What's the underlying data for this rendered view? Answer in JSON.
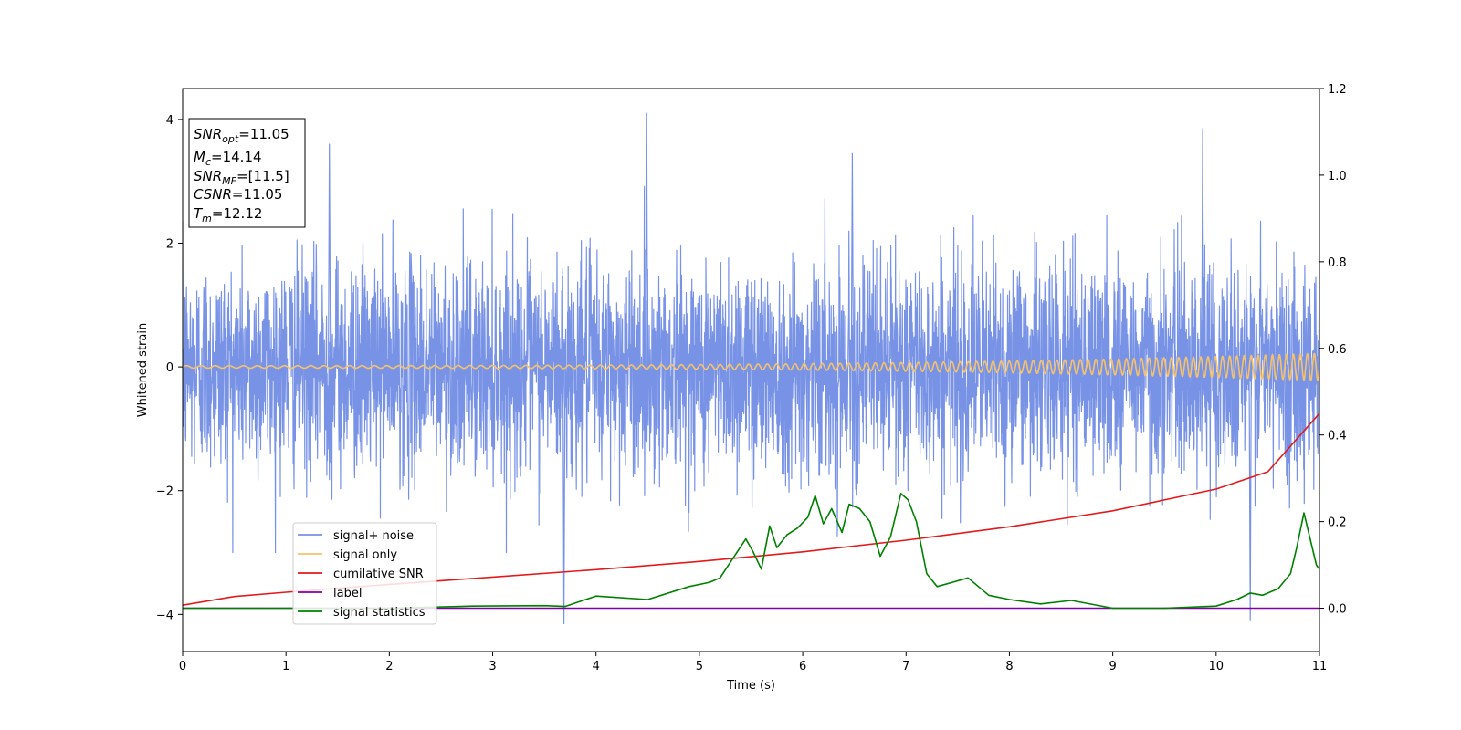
{
  "chart_data": {
    "type": "line",
    "xlabel": "Time (s)",
    "ylabel": "Whitened strain",
    "xlim": [
      0,
      11
    ],
    "ylim_left": [
      -4.6,
      4.5
    ],
    "ylim_right": [
      -0.1,
      1.2
    ],
    "x_ticks": [
      "0",
      "1",
      "2",
      "3",
      "4",
      "5",
      "6",
      "7",
      "8",
      "9",
      "10",
      "11"
    ],
    "y_left_ticks": [
      "4",
      "2",
      "0",
      "−2",
      "−4"
    ],
    "y_left_tick_values": [
      4,
      2,
      0,
      -2,
      -4
    ],
    "y_right_ticks": [
      "1.2",
      "1.0",
      "0.8",
      "0.6",
      "0.4",
      "0.2",
      "0.0"
    ],
    "y_right_tick_values": [
      1.2,
      1.0,
      0.8,
      0.6,
      0.4,
      0.2,
      0.0
    ],
    "grid": false,
    "legend_position": "lower-left",
    "info_box": {
      "lines": [
        {
          "var": "SNR",
          "sub": "opt",
          "value": "=11.05"
        },
        {
          "var": "M",
          "sub": "c",
          "value": "=14.14"
        },
        {
          "var": "SNR",
          "sub": "MF",
          "value": "=[11.5]"
        },
        {
          "var": "CSNR",
          "sub": "",
          "value": "=11.05"
        },
        {
          "var": "T",
          "sub": "m",
          "value": "=12.12"
        }
      ]
    },
    "series": [
      {
        "name": "signal+ noise",
        "color": "#7893e6",
        "axis": "left",
        "description_kind": "noise",
        "amplitude_std": 0.85,
        "spikes": [
          [
            1.42,
            3.6
          ],
          [
            4.49,
            4.1
          ],
          [
            6.48,
            3.45
          ],
          [
            9.87,
            3.85
          ],
          [
            3.69,
            -4.15
          ],
          [
            10.33,
            -4.1
          ]
        ]
      },
      {
        "name": "signal only",
        "color": "#f5c26b",
        "axis": "left",
        "description_kind": "chirp",
        "amplitude_start": 0.02,
        "amplitude_end": 0.22
      },
      {
        "name": "cumilative SNR",
        "color": "#e31a1c",
        "axis": "right",
        "x": [
          0,
          0.5,
          1,
          2,
          3,
          4,
          5,
          6,
          7,
          8,
          9,
          10,
          10.5,
          11
        ],
        "y": [
          0.007,
          0.027,
          0.037,
          0.055,
          0.072,
          0.089,
          0.108,
          0.13,
          0.157,
          0.188,
          0.225,
          0.275,
          0.315,
          0.45
        ]
      },
      {
        "name": "label",
        "color": "#8000a0",
        "axis": "right",
        "x": [
          0,
          11
        ],
        "y": [
          0.0,
          0.0
        ]
      },
      {
        "name": "signal statistics",
        "color": "#008000",
        "axis": "right",
        "x": [
          0,
          1,
          2,
          2.8,
          3.5,
          3.7,
          4,
          4.5,
          4.9,
          5.1,
          5.2,
          5.45,
          5.52,
          5.6,
          5.68,
          5.75,
          5.85,
          5.95,
          6.05,
          6.12,
          6.2,
          6.28,
          6.38,
          6.45,
          6.55,
          6.65,
          6.75,
          6.85,
          6.95,
          7.02,
          7.1,
          7.2,
          7.3,
          7.45,
          7.6,
          7.7,
          7.8,
          8.0,
          8.3,
          8.6,
          9.0,
          9.5,
          10.0,
          10.2,
          10.33,
          10.45,
          10.6,
          10.72,
          10.78,
          10.85,
          10.9,
          10.97,
          11
        ],
        "y": [
          0.0,
          0.0,
          0.0,
          0.005,
          0.006,
          0.004,
          0.028,
          0.02,
          0.05,
          0.06,
          0.07,
          0.16,
          0.13,
          0.09,
          0.19,
          0.14,
          0.17,
          0.185,
          0.21,
          0.26,
          0.195,
          0.23,
          0.175,
          0.24,
          0.23,
          0.2,
          0.12,
          0.165,
          0.265,
          0.25,
          0.2,
          0.08,
          0.05,
          0.06,
          0.07,
          0.05,
          0.03,
          0.02,
          0.01,
          0.018,
          0.0,
          0.0,
          0.005,
          0.02,
          0.035,
          0.03,
          0.045,
          0.08,
          0.14,
          0.22,
          0.17,
          0.1,
          0.09
        ]
      }
    ]
  }
}
